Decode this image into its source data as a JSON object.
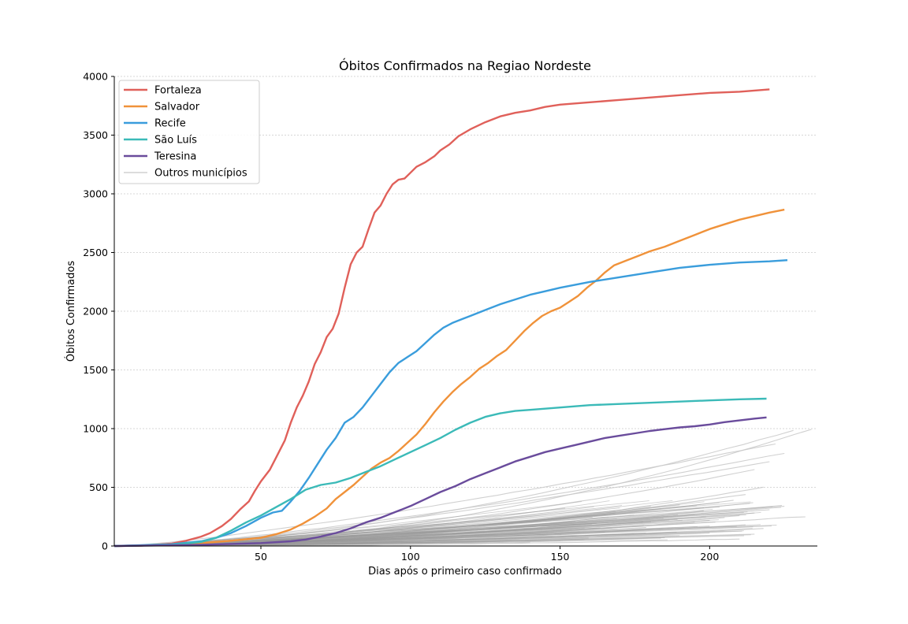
{
  "chart_data": {
    "type": "line",
    "title": "Óbitos Confirmados na Regiao Nordeste",
    "xlabel": "Dias após o primeiro caso confirmado",
    "ylabel": "Óbitos Confirmados",
    "xlim": [
      1,
      236
    ],
    "ylim": [
      0,
      4000
    ],
    "xticks": [
      50,
      100,
      150,
      200
    ],
    "yticks": [
      0,
      500,
      1000,
      1500,
      2000,
      2500,
      3000,
      3500,
      4000
    ],
    "grid": "horizontal dotted",
    "legend_position": "top-left",
    "series": [
      {
        "name": "Fortaleza",
        "color": "#e0605a",
        "points": [
          [
            1,
            0
          ],
          [
            10,
            3
          ],
          [
            20,
            20
          ],
          [
            25,
            45
          ],
          [
            30,
            80
          ],
          [
            33,
            110
          ],
          [
            37,
            170
          ],
          [
            40,
            230
          ],
          [
            43,
            310
          ],
          [
            46,
            380
          ],
          [
            48,
            470
          ],
          [
            50,
            550
          ],
          [
            53,
            650
          ],
          [
            55,
            750
          ],
          [
            58,
            900
          ],
          [
            60,
            1050
          ],
          [
            62,
            1180
          ],
          [
            64,
            1280
          ],
          [
            66,
            1400
          ],
          [
            68,
            1550
          ],
          [
            70,
            1650
          ],
          [
            72,
            1780
          ],
          [
            74,
            1850
          ],
          [
            76,
            1980
          ],
          [
            78,
            2200
          ],
          [
            80,
            2400
          ],
          [
            82,
            2500
          ],
          [
            84,
            2550
          ],
          [
            86,
            2700
          ],
          [
            88,
            2840
          ],
          [
            90,
            2900
          ],
          [
            92,
            3000
          ],
          [
            94,
            3080
          ],
          [
            96,
            3120
          ],
          [
            98,
            3130
          ],
          [
            100,
            3180
          ],
          [
            102,
            3230
          ],
          [
            105,
            3270
          ],
          [
            108,
            3320
          ],
          [
            110,
            3370
          ],
          [
            113,
            3420
          ],
          [
            116,
            3490
          ],
          [
            120,
            3550
          ],
          [
            125,
            3610
          ],
          [
            130,
            3660
          ],
          [
            135,
            3690
          ],
          [
            140,
            3710
          ],
          [
            145,
            3740
          ],
          [
            150,
            3760
          ],
          [
            160,
            3780
          ],
          [
            170,
            3800
          ],
          [
            180,
            3820
          ],
          [
            190,
            3840
          ],
          [
            200,
            3860
          ],
          [
            210,
            3870
          ],
          [
            215,
            3880
          ],
          [
            220,
            3890
          ]
        ]
      },
      {
        "name": "Salvador",
        "color": "#f0923a",
        "points": [
          [
            1,
            0
          ],
          [
            20,
            10
          ],
          [
            30,
            25
          ],
          [
            40,
            45
          ],
          [
            50,
            70
          ],
          [
            55,
            100
          ],
          [
            60,
            140
          ],
          [
            64,
            190
          ],
          [
            68,
            250
          ],
          [
            72,
            320
          ],
          [
            75,
            400
          ],
          [
            78,
            460
          ],
          [
            81,
            520
          ],
          [
            84,
            590
          ],
          [
            87,
            660
          ],
          [
            90,
            710
          ],
          [
            93,
            750
          ],
          [
            96,
            810
          ],
          [
            99,
            880
          ],
          [
            102,
            950
          ],
          [
            105,
            1040
          ],
          [
            108,
            1140
          ],
          [
            111,
            1230
          ],
          [
            114,
            1310
          ],
          [
            117,
            1380
          ],
          [
            120,
            1440
          ],
          [
            123,
            1510
          ],
          [
            126,
            1560
          ],
          [
            129,
            1620
          ],
          [
            132,
            1670
          ],
          [
            135,
            1750
          ],
          [
            138,
            1830
          ],
          [
            141,
            1900
          ],
          [
            144,
            1960
          ],
          [
            147,
            2000
          ],
          [
            150,
            2030
          ],
          [
            153,
            2080
          ],
          [
            156,
            2130
          ],
          [
            159,
            2200
          ],
          [
            162,
            2260
          ],
          [
            165,
            2330
          ],
          [
            168,
            2390
          ],
          [
            172,
            2430
          ],
          [
            176,
            2470
          ],
          [
            180,
            2510
          ],
          [
            185,
            2550
          ],
          [
            190,
            2600
          ],
          [
            195,
            2650
          ],
          [
            200,
            2700
          ],
          [
            205,
            2740
          ],
          [
            210,
            2780
          ],
          [
            215,
            2810
          ],
          [
            220,
            2840
          ],
          [
            225,
            2865
          ]
        ]
      },
      {
        "name": "Recife",
        "color": "#3a9ddc",
        "points": [
          [
            1,
            0
          ],
          [
            20,
            15
          ],
          [
            30,
            40
          ],
          [
            35,
            70
          ],
          [
            40,
            110
          ],
          [
            45,
            170
          ],
          [
            50,
            240
          ],
          [
            54,
            285
          ],
          [
            57,
            300
          ],
          [
            60,
            380
          ],
          [
            63,
            470
          ],
          [
            66,
            580
          ],
          [
            69,
            700
          ],
          [
            72,
            820
          ],
          [
            75,
            920
          ],
          [
            78,
            1050
          ],
          [
            81,
            1100
          ],
          [
            84,
            1180
          ],
          [
            87,
            1280
          ],
          [
            90,
            1380
          ],
          [
            93,
            1480
          ],
          [
            96,
            1560
          ],
          [
            99,
            1610
          ],
          [
            102,
            1660
          ],
          [
            105,
            1730
          ],
          [
            108,
            1800
          ],
          [
            111,
            1860
          ],
          [
            114,
            1900
          ],
          [
            117,
            1930
          ],
          [
            120,
            1960
          ],
          [
            123,
            1990
          ],
          [
            126,
            2020
          ],
          [
            130,
            2060
          ],
          [
            135,
            2100
          ],
          [
            140,
            2140
          ],
          [
            145,
            2170
          ],
          [
            150,
            2200
          ],
          [
            160,
            2250
          ],
          [
            170,
            2290
          ],
          [
            180,
            2330
          ],
          [
            190,
            2370
          ],
          [
            200,
            2395
          ],
          [
            210,
            2415
          ],
          [
            220,
            2425
          ],
          [
            226,
            2435
          ]
        ]
      },
      {
        "name": "São Luís",
        "color": "#3bbab8",
        "points": [
          [
            1,
            0
          ],
          [
            20,
            10
          ],
          [
            30,
            35
          ],
          [
            35,
            70
          ],
          [
            40,
            130
          ],
          [
            45,
            200
          ],
          [
            50,
            260
          ],
          [
            55,
            330
          ],
          [
            60,
            400
          ],
          [
            65,
            480
          ],
          [
            70,
            520
          ],
          [
            75,
            540
          ],
          [
            80,
            580
          ],
          [
            85,
            630
          ],
          [
            90,
            680
          ],
          [
            95,
            740
          ],
          [
            100,
            800
          ],
          [
            105,
            860
          ],
          [
            110,
            920
          ],
          [
            115,
            990
          ],
          [
            120,
            1050
          ],
          [
            125,
            1100
          ],
          [
            130,
            1130
          ],
          [
            135,
            1150
          ],
          [
            140,
            1160
          ],
          [
            150,
            1180
          ],
          [
            160,
            1200
          ],
          [
            170,
            1210
          ],
          [
            180,
            1220
          ],
          [
            190,
            1230
          ],
          [
            200,
            1240
          ],
          [
            210,
            1250
          ],
          [
            219,
            1255
          ]
        ]
      },
      {
        "name": "Teresina",
        "color": "#6a4c9c",
        "points": [
          [
            1,
            0
          ],
          [
            30,
            10
          ],
          [
            50,
            25
          ],
          [
            60,
            40
          ],
          [
            65,
            55
          ],
          [
            70,
            80
          ],
          [
            75,
            110
          ],
          [
            80,
            150
          ],
          [
            85,
            200
          ],
          [
            90,
            240
          ],
          [
            95,
            290
          ],
          [
            100,
            340
          ],
          [
            105,
            400
          ],
          [
            110,
            460
          ],
          [
            115,
            510
          ],
          [
            120,
            570
          ],
          [
            125,
            620
          ],
          [
            130,
            670
          ],
          [
            135,
            720
          ],
          [
            140,
            760
          ],
          [
            145,
            800
          ],
          [
            150,
            830
          ],
          [
            155,
            860
          ],
          [
            160,
            890
          ],
          [
            165,
            920
          ],
          [
            170,
            940
          ],
          [
            175,
            960
          ],
          [
            180,
            980
          ],
          [
            185,
            995
          ],
          [
            190,
            1010
          ],
          [
            195,
            1020
          ],
          [
            200,
            1035
          ],
          [
            205,
            1055
          ],
          [
            210,
            1070
          ],
          [
            215,
            1085
          ],
          [
            219,
            1095
          ]
        ]
      },
      {
        "name": "Outros municípios",
        "color": "#c8c8c8",
        "gray_lines": [
          {
            "end_x": 234,
            "end_y": 995
          },
          {
            "end_x": 228,
            "end_y": 985
          },
          {
            "end_x": 222,
            "end_y": 870
          },
          {
            "end_x": 225,
            "end_y": 790
          },
          {
            "end_x": 220,
            "end_y": 720
          },
          {
            "end_x": 215,
            "end_y": 650
          },
          {
            "end_x": 218,
            "end_y": 500
          },
          {
            "end_x": 212,
            "end_y": 440
          },
          {
            "end_x": 208,
            "end_y": 390
          },
          {
            "end_x": 232,
            "end_y": 250
          },
          {
            "end_x": 225,
            "end_y": 340
          },
          {
            "end_x": 220,
            "end_y": 310
          },
          {
            "end_x": 215,
            "end_y": 280
          },
          {
            "end_x": 210,
            "end_y": 260
          },
          {
            "end_x": 205,
            "end_y": 240
          },
          {
            "end_x": 200,
            "end_y": 220
          },
          {
            "end_x": 195,
            "end_y": 200
          },
          {
            "end_x": 212,
            "end_y": 180
          },
          {
            "end_x": 218,
            "end_y": 150
          },
          {
            "end_x": 205,
            "end_y": 130
          },
          {
            "end_x": 200,
            "end_y": 110
          },
          {
            "end_x": 190,
            "end_y": 90
          },
          {
            "end_x": 185,
            "end_y": 70
          },
          {
            "end_x": 210,
            "end_y": 60
          },
          {
            "end_x": 215,
            "end_y": 100
          },
          {
            "end_x": 200,
            "end_y": 170
          },
          {
            "end_x": 198,
            "end_y": 300
          },
          {
            "end_x": 190,
            "end_y": 350
          },
          {
            "end_x": 195,
            "end_y": 270
          },
          {
            "end_x": 180,
            "end_y": 230
          },
          {
            "end_x": 175,
            "end_y": 190
          },
          {
            "end_x": 170,
            "end_y": 160
          },
          {
            "end_x": 165,
            "end_y": 120
          },
          {
            "end_x": 160,
            "end_y": 80
          },
          {
            "end_x": 150,
            "end_y": 50
          },
          {
            "end_x": 140,
            "end_y": 30
          }
        ]
      }
    ]
  }
}
